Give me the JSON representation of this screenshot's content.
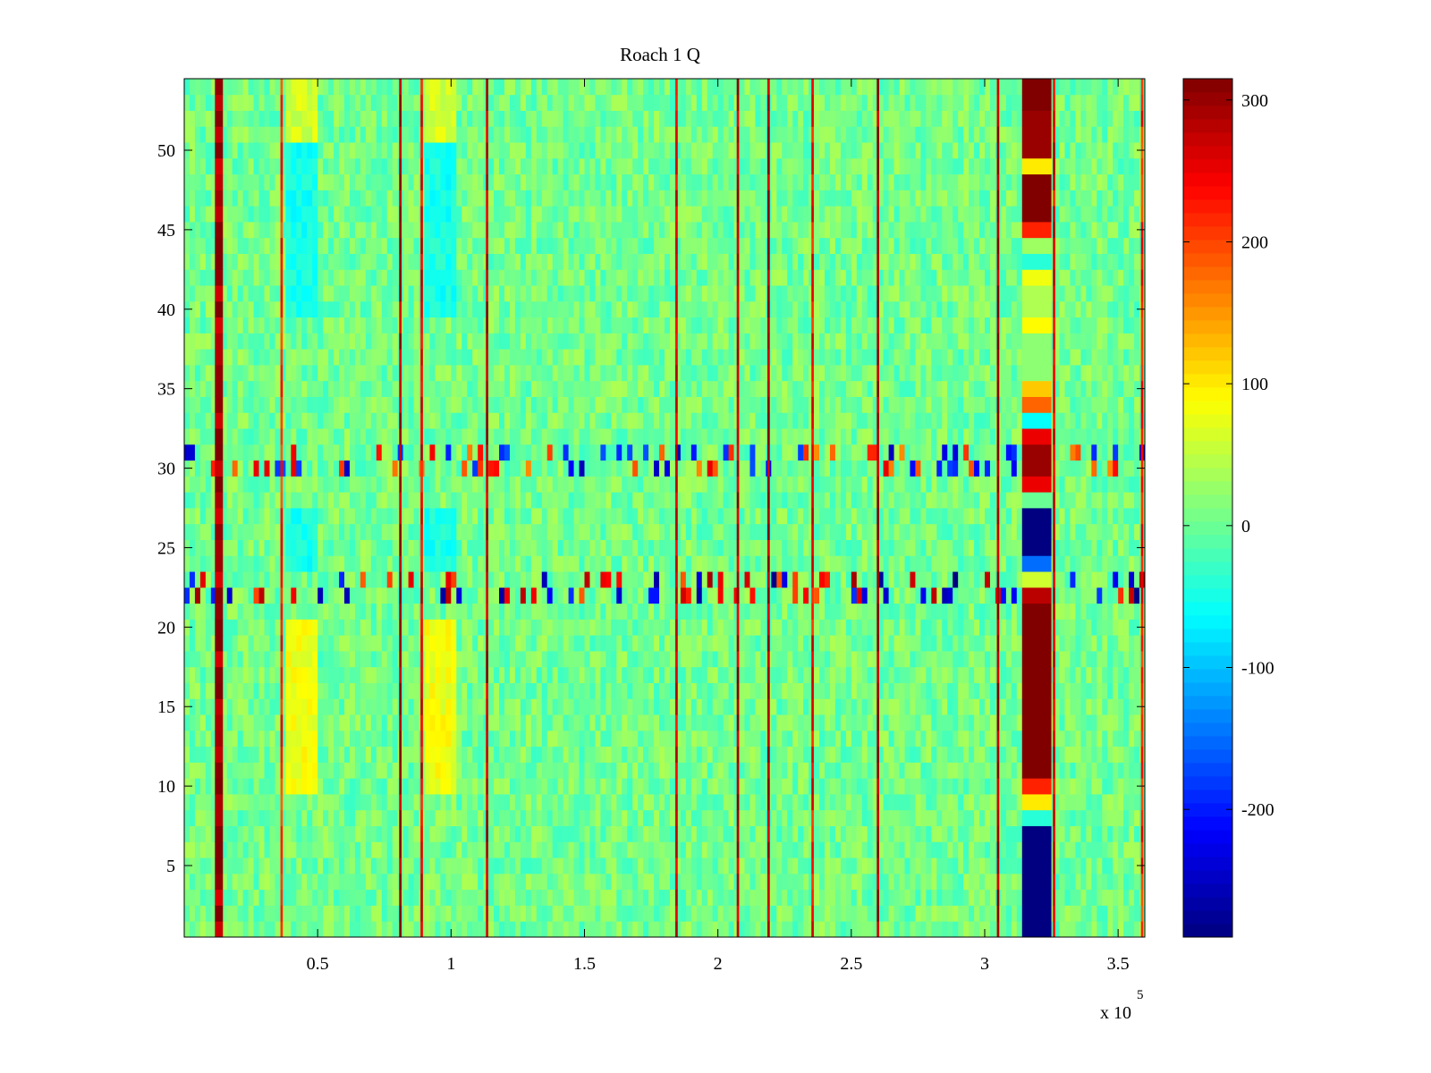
{
  "chart_data": {
    "type": "heatmap",
    "title": "Roach 1 Q",
    "xlabel": "",
    "ylabel": "",
    "x_range": [
      0,
      360000
    ],
    "y_range": [
      0.5,
      54.5
    ],
    "n_rows": 54,
    "x_exponent_label": "x 10",
    "x_exponent_power": "5",
    "x_ticks": [
      {
        "value": 50000,
        "label": "0.5"
      },
      {
        "value": 100000,
        "label": "1"
      },
      {
        "value": 150000,
        "label": "1.5"
      },
      {
        "value": 200000,
        "label": "2"
      },
      {
        "value": 250000,
        "label": "2.5"
      },
      {
        "value": 300000,
        "label": "3"
      },
      {
        "value": 350000,
        "label": "3.5"
      }
    ],
    "y_ticks": [
      {
        "value": 5,
        "label": "5"
      },
      {
        "value": 10,
        "label": "10"
      },
      {
        "value": 15,
        "label": "15"
      },
      {
        "value": 20,
        "label": "20"
      },
      {
        "value": 25,
        "label": "25"
      },
      {
        "value": 30,
        "label": "30"
      },
      {
        "value": 35,
        "label": "35"
      },
      {
        "value": 40,
        "label": "40"
      },
      {
        "value": 45,
        "label": "45"
      },
      {
        "value": 50,
        "label": "50"
      }
    ],
    "colorbar": {
      "range": [
        -290,
        315
      ],
      "colormap": "jet",
      "ticks": [
        {
          "value": 300,
          "label": "300"
        },
        {
          "value": 200,
          "label": "200"
        },
        {
          "value": 100,
          "label": "100"
        },
        {
          "value": 0,
          "label": "0"
        },
        {
          "value": -100,
          "label": "-100"
        },
        {
          "value": -200,
          "label": "-200"
        }
      ]
    },
    "background_value_range": [
      -30,
      40
    ],
    "vertical_streaks": [
      {
        "x": 13000,
        "value": 300,
        "rows": [
          1,
          54
        ],
        "width": 3000
      },
      {
        "x": 36500,
        "value": 220,
        "rows": [
          1,
          54
        ],
        "width": 900
      },
      {
        "x": 81000,
        "value": 300,
        "rows": [
          1,
          54
        ],
        "width": 900
      },
      {
        "x": 89000,
        "value": 250,
        "rows": [
          1,
          54
        ],
        "width": 900
      },
      {
        "x": 113500,
        "value": 280,
        "rows": [
          1,
          54
        ],
        "width": 900
      },
      {
        "x": 184500,
        "value": 260,
        "rows": [
          1,
          54
        ],
        "width": 900
      },
      {
        "x": 207500,
        "value": 280,
        "rows": [
          1,
          54
        ],
        "width": 900
      },
      {
        "x": 219000,
        "value": 300,
        "rows": [
          1,
          54
        ],
        "width": 900
      },
      {
        "x": 235500,
        "value": 240,
        "rows": [
          1,
          54
        ],
        "width": 900
      },
      {
        "x": 260000,
        "value": 300,
        "rows": [
          1,
          54
        ],
        "width": 900
      },
      {
        "x": 305000,
        "value": 300,
        "rows": [
          1,
          54
        ],
        "width": 900
      },
      {
        "x": 326000,
        "value": 250,
        "rows": [
          1,
          54
        ],
        "width": 900
      },
      {
        "x": 359000,
        "value": 220,
        "rows": [
          1,
          54
        ],
        "width": 900
      }
    ],
    "column_block": {
      "x_start": 314000,
      "x_end": 325000,
      "cells": [
        {
          "rows": [
            1,
            7
          ],
          "value": -290
        },
        {
          "rows": [
            8,
            8
          ],
          "value": -40
        },
        {
          "rows": [
            9,
            9
          ],
          "value": 100
        },
        {
          "rows": [
            10,
            10
          ],
          "value": 220
        },
        {
          "rows": [
            11,
            21
          ],
          "value": 315
        },
        {
          "rows": [
            22,
            22
          ],
          "value": 280
        },
        {
          "rows": [
            23,
            23
          ],
          "value": 60
        },
        {
          "rows": [
            24,
            24
          ],
          "value": -150
        },
        {
          "rows": [
            25,
            27
          ],
          "value": -290
        },
        {
          "rows": [
            28,
            28
          ],
          "value": 0
        },
        {
          "rows": [
            29,
            29
          ],
          "value": 250
        },
        {
          "rows": [
            30,
            31
          ],
          "value": 300
        },
        {
          "rows": [
            32,
            32
          ],
          "value": 250
        },
        {
          "rows": [
            33,
            33
          ],
          "value": -60
        },
        {
          "rows": [
            34,
            34
          ],
          "value": 180
        },
        {
          "rows": [
            35,
            35
          ],
          "value": 120
        },
        {
          "rows": [
            36,
            38
          ],
          "value": 20
        },
        {
          "rows": [
            39,
            39
          ],
          "value": 90
        },
        {
          "rows": [
            40,
            41
          ],
          "value": 40
        },
        {
          "rows": [
            42,
            42
          ],
          "value": 80
        },
        {
          "rows": [
            43,
            43
          ],
          "value": -40
        },
        {
          "rows": [
            44,
            44
          ],
          "value": 30
        },
        {
          "rows": [
            45,
            45
          ],
          "value": 220
        },
        {
          "rows": [
            46,
            48
          ],
          "value": 315
        },
        {
          "rows": [
            49,
            49
          ],
          "value": 100
        },
        {
          "rows": [
            50,
            52
          ],
          "value": 300
        },
        {
          "rows": [
            53,
            54
          ],
          "value": 315
        }
      ]
    },
    "noisy_rows": [
      {
        "row": 22,
        "amplitude": 300
      },
      {
        "row": 23,
        "amplitude": 300
      },
      {
        "row": 30,
        "amplitude": 260
      },
      {
        "row": 31,
        "amplitude": 260
      }
    ],
    "soft_patches": [
      {
        "x_range": [
          38000,
          50000
        ],
        "rows": [
          10,
          20
        ],
        "value": 80
      },
      {
        "x_range": [
          90000,
          102000
        ],
        "rows": [
          10,
          20
        ],
        "value": 80
      },
      {
        "x_range": [
          38000,
          50000
        ],
        "rows": [
          24,
          27
        ],
        "value": -50
      },
      {
        "x_range": [
          90000,
          102000
        ],
        "rows": [
          24,
          27
        ],
        "value": -50
      },
      {
        "x_range": [
          38000,
          50000
        ],
        "rows": [
          40,
          50
        ],
        "value": -50
      },
      {
        "x_range": [
          90000,
          102000
        ],
        "rows": [
          40,
          50
        ],
        "value": -50
      },
      {
        "x_range": [
          38000,
          50000
        ],
        "rows": [
          51,
          54
        ],
        "value": 60
      },
      {
        "x_range": [
          90000,
          102000
        ],
        "rows": [
          51,
          54
        ],
        "value": 60
      }
    ]
  }
}
